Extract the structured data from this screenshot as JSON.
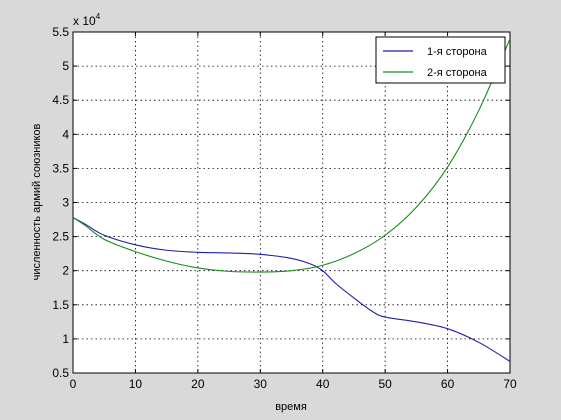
{
  "chart_data": {
    "type": "line",
    "xlabel": "время",
    "ylabel": "численность армий союзников",
    "y_multiplier_label": "x 10",
    "y_multiplier_exponent": "4",
    "xlim": [
      0,
      70
    ],
    "ylim": [
      0.5,
      5.5
    ],
    "y_scale_factor": 10000,
    "x_ticks": [
      "0",
      "10",
      "20",
      "30",
      "40",
      "50",
      "60",
      "70"
    ],
    "y_ticks": [
      "0.5",
      "1",
      "1.5",
      "2",
      "2.5",
      "3",
      "3.5",
      "4",
      "4.5",
      "5",
      "5.5"
    ],
    "grid": true,
    "legend_position": "top-right",
    "series": [
      {
        "name": "1-я сторона",
        "color": "#1f1fa8",
        "x": [
          0,
          2,
          5,
          10,
          15,
          20,
          25,
          30,
          35,
          38,
          40,
          42,
          45,
          48,
          50,
          55,
          60,
          65,
          70
        ],
        "y": [
          2.78,
          2.68,
          2.52,
          2.38,
          2.3,
          2.27,
          2.26,
          2.24,
          2.18,
          2.1,
          2.0,
          1.82,
          1.6,
          1.4,
          1.32,
          1.25,
          1.15,
          0.95,
          0.67
        ]
      },
      {
        "name": "2-я сторона",
        "color": "#1a8a1a",
        "x": [
          0,
          2,
          5,
          10,
          15,
          20,
          25,
          30,
          35,
          40,
          45,
          50,
          55,
          60,
          65,
          70
        ],
        "y": [
          2.78,
          2.66,
          2.46,
          2.28,
          2.14,
          2.04,
          1.99,
          1.98,
          2.0,
          2.08,
          2.25,
          2.52,
          2.93,
          3.52,
          4.35,
          5.4
        ]
      }
    ]
  }
}
